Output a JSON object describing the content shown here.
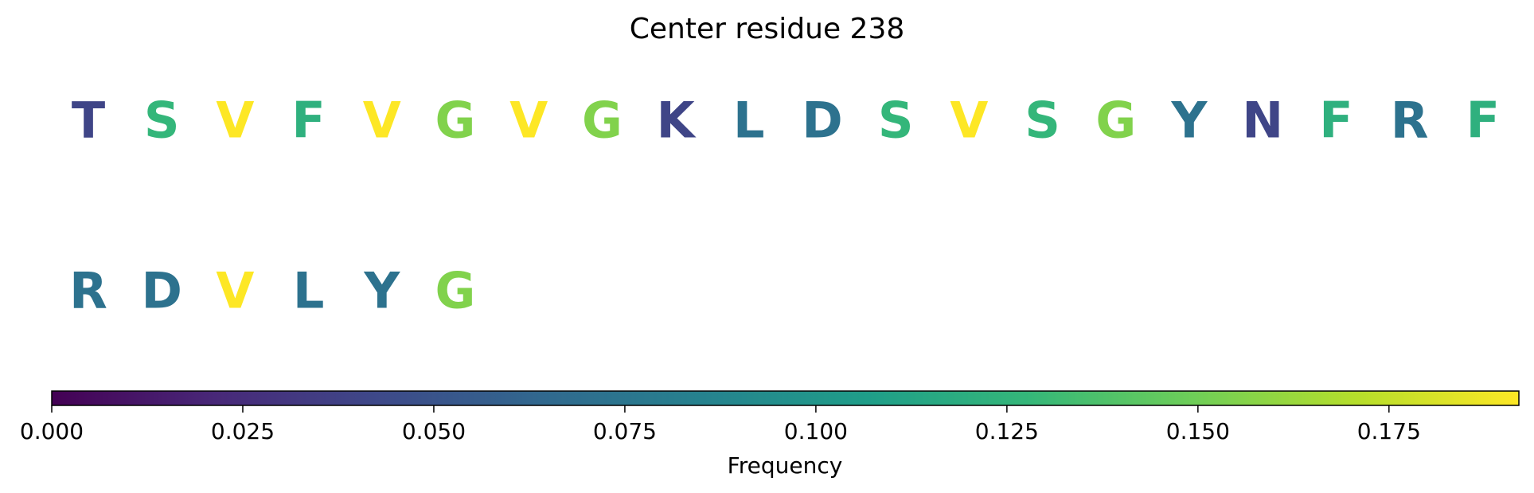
{
  "chart_data": {
    "type": "sequence-logo",
    "title": "Center residue 238",
    "residues": [
      {
        "letter": "T",
        "frequency": 0.04
      },
      {
        "letter": "S",
        "frequency": 0.127
      },
      {
        "letter": "V",
        "frequency": 0.192
      },
      {
        "letter": "F",
        "frequency": 0.122
      },
      {
        "letter": "V",
        "frequency": 0.192
      },
      {
        "letter": "G",
        "frequency": 0.155
      },
      {
        "letter": "V",
        "frequency": 0.192
      },
      {
        "letter": "G",
        "frequency": 0.155
      },
      {
        "letter": "K",
        "frequency": 0.04
      },
      {
        "letter": "L",
        "frequency": 0.072
      },
      {
        "letter": "D",
        "frequency": 0.072
      },
      {
        "letter": "S",
        "frequency": 0.127
      },
      {
        "letter": "V",
        "frequency": 0.192
      },
      {
        "letter": "S",
        "frequency": 0.127
      },
      {
        "letter": "G",
        "frequency": 0.155
      },
      {
        "letter": "Y",
        "frequency": 0.072
      },
      {
        "letter": "N",
        "frequency": 0.04
      },
      {
        "letter": "F",
        "frequency": 0.122
      },
      {
        "letter": "R",
        "frequency": 0.072
      },
      {
        "letter": "F",
        "frequency": 0.122
      },
      {
        "letter": "R",
        "frequency": 0.072
      },
      {
        "letter": "D",
        "frequency": 0.072
      },
      {
        "letter": "V",
        "frequency": 0.192
      },
      {
        "letter": "L",
        "frequency": 0.072
      },
      {
        "letter": "Y",
        "frequency": 0.072
      },
      {
        "letter": "G",
        "frequency": 0.155
      }
    ],
    "letters_per_row": 20,
    "colormap": "viridis",
    "colorbar": {
      "label": "Frequency",
      "range": [
        0,
        0.192
      ],
      "ticks": [
        0.0,
        0.025,
        0.05,
        0.075,
        0.1,
        0.125,
        0.15,
        0.175
      ],
      "tick_labels": [
        "0.000",
        "0.025",
        "0.050",
        "0.075",
        "0.100",
        "0.125",
        "0.150",
        "0.175"
      ]
    }
  }
}
